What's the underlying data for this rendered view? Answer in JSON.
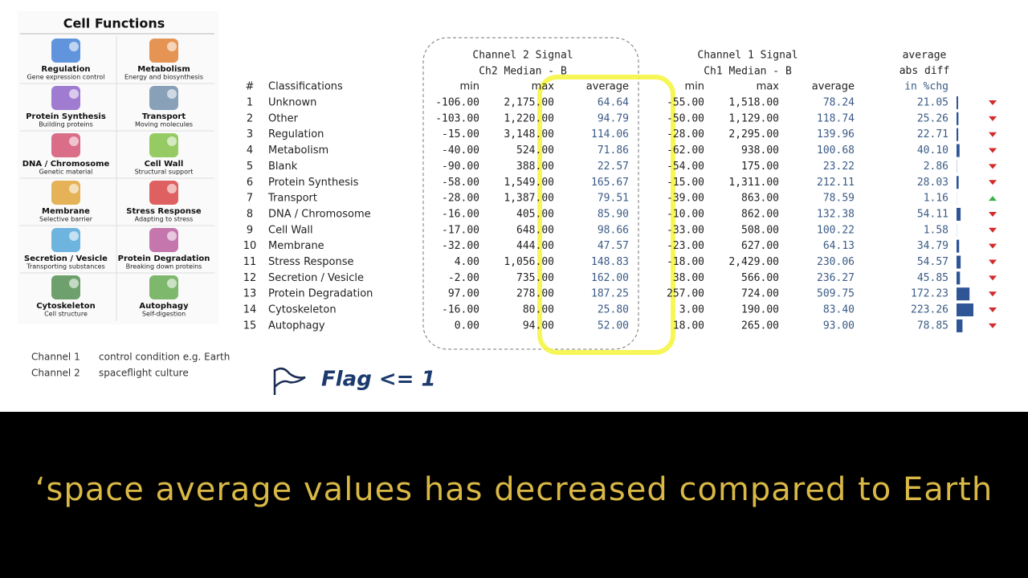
{
  "legend": {
    "title": "Cell Functions",
    "items": [
      {
        "label": "Regulation",
        "description": "Gene expression control"
      },
      {
        "label": "Metabolism",
        "description": "Energy and biosynthesis"
      },
      {
        "label": "Protein Synthesis",
        "description": "Building proteins"
      },
      {
        "label": "Transport",
        "description": "Moving molecules"
      },
      {
        "label": "DNA / Chromosome",
        "description": "Genetic material"
      },
      {
        "label": "Cell Wall",
        "description": "Structural support"
      },
      {
        "label": "Membrane",
        "description": "Selective barrier"
      },
      {
        "label": "Stress Response",
        "description": "Adapting to stress"
      },
      {
        "label": "Secretion / Vesicle",
        "description": "Transporting substances"
      },
      {
        "label": "Protein Degradation",
        "description": "Breaking down proteins"
      },
      {
        "label": "Cytoskeleton",
        "description": "Cell structure"
      },
      {
        "label": "Autophagy",
        "description": "Self-digestion"
      }
    ]
  },
  "table": {
    "group_headers": [
      {
        "title": "Channel 2 Signal",
        "subtitle": "Ch2 Median - B"
      },
      {
        "title": "Channel 1 Signal",
        "subtitle": "Ch1 Median - B"
      }
    ],
    "diff_header": [
      "average",
      "abs diff",
      "in %chg"
    ],
    "columns": [
      "#",
      "Classifications",
      "min",
      "max",
      "average",
      "min",
      "max",
      "average"
    ],
    "rows": [
      [
        "1",
        "Unknown",
        "-106.00",
        "2,175.00",
        "64.64",
        "-55.00",
        "1,518.00",
        "78.24",
        "21.05"
      ],
      [
        "2",
        "Other",
        "-103.00",
        "1,220.00",
        "94.79",
        "-50.00",
        "1,129.00",
        "118.74",
        "25.26"
      ],
      [
        "3",
        "Regulation",
        "-15.00",
        "3,148.00",
        "114.06",
        "-28.00",
        "2,295.00",
        "139.96",
        "22.71"
      ],
      [
        "4",
        "Metabolism",
        "-40.00",
        "524.00",
        "71.86",
        "-62.00",
        "938.00",
        "100.68",
        "40.10"
      ],
      [
        "5",
        "Blank",
        "-90.00",
        "388.00",
        "22.57",
        "-54.00",
        "175.00",
        "23.22",
        "2.86"
      ],
      [
        "6",
        "Protein Synthesis",
        "-58.00",
        "1,549.00",
        "165.67",
        "-15.00",
        "1,311.00",
        "212.11",
        "28.03"
      ],
      [
        "7",
        "Transport",
        "-28.00",
        "1,387.00",
        "79.51",
        "-39.00",
        "863.00",
        "78.59",
        "1.16"
      ],
      [
        "8",
        "DNA / Chromosome",
        "-16.00",
        "405.00",
        "85.90",
        "-10.00",
        "862.00",
        "132.38",
        "54.11"
      ],
      [
        "9",
        "Cell Wall",
        "-17.00",
        "648.00",
        "98.66",
        "-33.00",
        "508.00",
        "100.22",
        "1.58"
      ],
      [
        "10",
        "Membrane",
        "-32.00",
        "444.00",
        "47.57",
        "-23.00",
        "627.00",
        "64.13",
        "34.79"
      ],
      [
        "11",
        "Stress Response",
        "4.00",
        "1,056.00",
        "148.83",
        "-18.00",
        "2,429.00",
        "230.06",
        "54.57"
      ],
      [
        "12",
        "Secretion / Vesicle",
        "-2.00",
        "735.00",
        "162.00",
        "38.00",
        "566.00",
        "236.27",
        "45.85"
      ],
      [
        "13",
        "Protein Degradation",
        "97.00",
        "278.00",
        "187.25",
        "257.00",
        "724.00",
        "509.75",
        "172.23"
      ],
      [
        "14",
        "Cytoskeleton",
        "-16.00",
        "80.00",
        "25.80",
        "3.00",
        "190.00",
        "83.40",
        "223.26"
      ],
      [
        "15",
        "Autophagy",
        "0.00",
        "94.00",
        "52.00",
        "18.00",
        "265.00",
        "93.00",
        "78.85"
      ]
    ]
  },
  "notes": [
    {
      "term": "Channel 1",
      "text": "control condition e.g. Earth"
    },
    {
      "term": "Channel 2",
      "text": "spaceflight culture"
    }
  ],
  "flag_label": "Flag <= 1",
  "caption": "‘space average values has decreased compared to Earth"
}
